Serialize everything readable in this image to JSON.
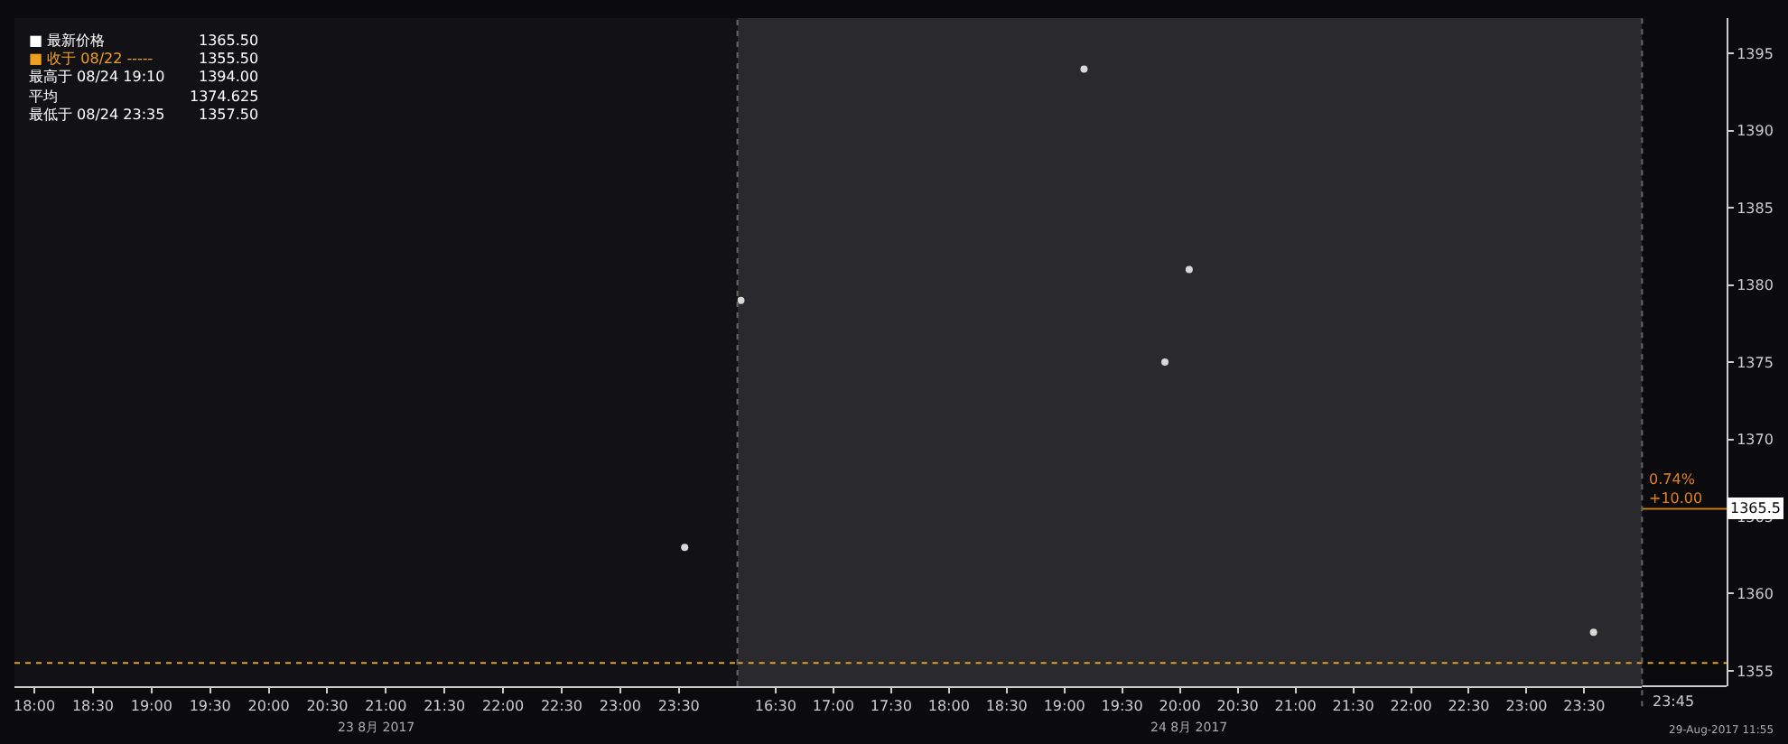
{
  "chart_data": [
    {
      "type": "scatter",
      "x": [
        23.55
      ],
      "series": [
        {
          "color": "#d8d8d8",
          "values": [
            1363.0
          ]
        }
      ],
      "xlim": [
        17.83,
        24
      ],
      "xticks": [
        {
          "value": 18,
          "label": "18:00"
        },
        {
          "value": 18.5,
          "label": "18:30"
        },
        {
          "value": 19,
          "label": "19:00"
        },
        {
          "value": 19.5,
          "label": "19:30"
        },
        {
          "value": 20,
          "label": "20:00"
        },
        {
          "value": 20.5,
          "label": "20:30"
        },
        {
          "value": 21,
          "label": "21:00"
        },
        {
          "value": 21.5,
          "label": "21:30"
        },
        {
          "value": 22,
          "label": "22:00"
        },
        {
          "value": 22.5,
          "label": "22:30"
        },
        {
          "value": 23,
          "label": "23:00"
        },
        {
          "value": 23.5,
          "label": "23:30"
        }
      ],
      "ylim": [
        1354,
        1397.3
      ],
      "yticks": [
        1355,
        1360,
        1365,
        1370,
        1375,
        1380,
        1385,
        1390,
        1395
      ],
      "ref_lines": [
        {
          "axis": "y",
          "value": 1355.5,
          "color": "#e0a030",
          "line_style": "dotted"
        }
      ],
      "annotations": [
        "■ 最新价格",
        "1365.50",
        "■ 收于 08/22 -----",
        "1355.50",
        "最高于 08/24 19:10",
        "1394.00",
        "平均",
        "1374.625",
        "最低于 08/24 23:35",
        "1357.50",
        "23 8月 2017"
      ],
      "tick_labels": "x",
      "grid": false
    },
    {
      "type": "scatter",
      "x": [
        16.2,
        19.17,
        19.87,
        20.08,
        23.58
      ],
      "series": [
        {
          "color": "#d8d8d8",
          "values": [
            1379.0,
            1394.0,
            1375.0,
            1381.0,
            1357.5
          ]
        }
      ],
      "xlim": [
        16.17,
        24
      ],
      "xticks": [
        {
          "value": 16.5,
          "label": "16:30"
        },
        {
          "value": 17,
          "label": "17:00"
        },
        {
          "value": 17.5,
          "label": "17:30"
        },
        {
          "value": 18,
          "label": "18:00"
        },
        {
          "value": 18.5,
          "label": "18:30"
        },
        {
          "value": 19,
          "label": "19:00"
        },
        {
          "value": 19.5,
          "label": "19:30"
        },
        {
          "value": 20,
          "label": "20:00"
        },
        {
          "value": 20.5,
          "label": "20:30"
        },
        {
          "value": 21,
          "label": "21:00"
        },
        {
          "value": 21.5,
          "label": "21:30"
        },
        {
          "value": 22,
          "label": "22:00"
        },
        {
          "value": 22.5,
          "label": "22:30"
        },
        {
          "value": 23,
          "label": "23:00"
        },
        {
          "value": 23.5,
          "label": "23:30"
        }
      ],
      "ylim": [
        1354,
        1397.3
      ],
      "yticks": [
        1355,
        1360,
        1365,
        1370,
        1375,
        1380,
        1385,
        1390,
        1395
      ],
      "ref_lines": [
        {
          "axis": "y",
          "value": 1355.5,
          "color": "#e0a030",
          "line_style": "dotted"
        },
        {
          "axis": "y",
          "value": 1365.5,
          "label": "1365.5",
          "color": "#c8781e",
          "line_style": "solid"
        }
      ],
      "bands": [
        {
          "axis": "x",
          "from": 16.17,
          "to": 24,
          "color": "#2a2a2e"
        }
      ],
      "annotations": [
        "24 8月 2017",
        "23:45",
        "0.74%",
        "+10.00",
        "29-Aug-2017 11:55"
      ],
      "grid": false
    }
  ]
}
